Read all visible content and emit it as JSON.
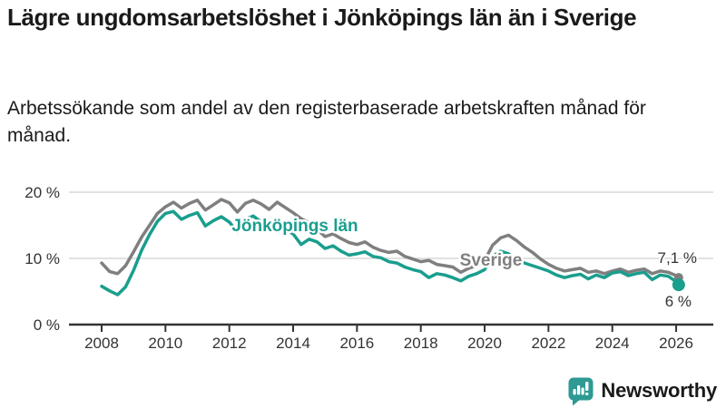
{
  "header": {
    "title": "Lägre ungdomsarbetslöshet i Jönköpings län än i Sverige",
    "subtitle": "Arbetssökande som andel av den registerbaserade arbetskraften månad för månad."
  },
  "chart_data": {
    "type": "line",
    "title": "Lägre ungdomsarbetslöshet i Jönköpings län än i Sverige",
    "xlabel": "",
    "ylabel": "",
    "xlim": [
      2008,
      2026.4
    ],
    "ylim": [
      0,
      21.5
    ],
    "grid": "horizontal",
    "legend": "inline-labels",
    "x_ticks": [
      2008,
      2010,
      2012,
      2014,
      2016,
      2018,
      2020,
      2022,
      2024,
      2026
    ],
    "y_ticks": [
      {
        "value": 0,
        "label": "0 %"
      },
      {
        "value": 10,
        "label": "10 %"
      },
      {
        "value": 20,
        "label": "20 %"
      }
    ],
    "x": [
      2008,
      2008.25,
      2008.5,
      2008.75,
      2009,
      2009.25,
      2009.5,
      2009.75,
      2010,
      2010.25,
      2010.5,
      2010.75,
      2011,
      2011.25,
      2011.5,
      2011.75,
      2012,
      2012.25,
      2012.5,
      2012.75,
      2013,
      2013.25,
      2013.5,
      2013.75,
      2014,
      2014.25,
      2014.5,
      2014.75,
      2015,
      2015.25,
      2015.5,
      2015.75,
      2016,
      2016.25,
      2016.5,
      2016.75,
      2017,
      2017.25,
      2017.5,
      2017.75,
      2018,
      2018.25,
      2018.5,
      2018.75,
      2019,
      2019.25,
      2019.5,
      2019.75,
      2020,
      2020.25,
      2020.5,
      2020.75,
      2021,
      2021.25,
      2021.5,
      2021.75,
      2022,
      2022.25,
      2022.5,
      2022.75,
      2023,
      2023.25,
      2023.5,
      2023.75,
      2024,
      2024.25,
      2024.5,
      2024.75,
      2025,
      2025.25,
      2025.5,
      2025.75,
      2026,
      2026.08
    ],
    "series": [
      {
        "name": "Sverige",
        "color": "#7f7f7f",
        "end_label": "7,1 %",
        "end_value": 7.1,
        "values": [
          9.3,
          8.0,
          7.7,
          8.9,
          11.0,
          13.2,
          15.0,
          16.8,
          17.8,
          18.5,
          17.6,
          18.3,
          18.8,
          17.3,
          18.1,
          18.9,
          18.4,
          17.0,
          18.3,
          18.8,
          18.2,
          17.4,
          18.5,
          17.7,
          16.9,
          16.0,
          15.4,
          14.4,
          13.3,
          13.7,
          13.0,
          12.4,
          12.1,
          12.5,
          11.7,
          11.2,
          10.9,
          11.1,
          10.3,
          9.9,
          9.5,
          9.7,
          9.1,
          8.9,
          8.7,
          7.9,
          8.5,
          8.9,
          9.7,
          12.0,
          13.1,
          13.5,
          12.7,
          11.7,
          10.9,
          9.9,
          9.1,
          8.5,
          8.1,
          8.3,
          8.5,
          7.9,
          8.1,
          7.7,
          8.1,
          8.4,
          7.9,
          8.2,
          8.4,
          7.7,
          8.1,
          7.9,
          7.4,
          7.1
        ]
      },
      {
        "name": "Jönköpings län",
        "color": "#1a9e8e",
        "end_label": "6 %",
        "end_value": 6.0,
        "values": [
          5.8,
          5.1,
          4.5,
          5.7,
          8.2,
          11.2,
          13.6,
          15.6,
          16.8,
          17.1,
          15.9,
          16.5,
          16.9,
          14.9,
          15.7,
          16.3,
          15.5,
          14.0,
          15.9,
          16.4,
          15.5,
          14.3,
          15.3,
          14.4,
          13.7,
          12.1,
          12.9,
          12.5,
          11.5,
          11.9,
          11.1,
          10.5,
          10.7,
          11.0,
          10.3,
          10.1,
          9.5,
          9.3,
          8.7,
          8.3,
          8.0,
          7.1,
          7.7,
          7.5,
          7.1,
          6.6,
          7.3,
          7.7,
          8.3,
          10.3,
          11.1,
          10.7,
          9.9,
          9.3,
          8.9,
          8.5,
          8.1,
          7.5,
          7.1,
          7.4,
          7.6,
          6.9,
          7.5,
          7.1,
          7.8,
          8.0,
          7.4,
          7.7,
          7.9,
          6.8,
          7.5,
          7.3,
          6.5,
          6.0
        ]
      }
    ],
    "colors": {
      "grid": "#d9d9d9",
      "axis": "#333333",
      "tick_text": "#333333",
      "end_label_text": "#333333"
    }
  },
  "branding": {
    "logo_text": "Newsworthy",
    "logo_color": "#2e9a93",
    "logo_icon": "bar-chart-speech-bubble-icon"
  }
}
